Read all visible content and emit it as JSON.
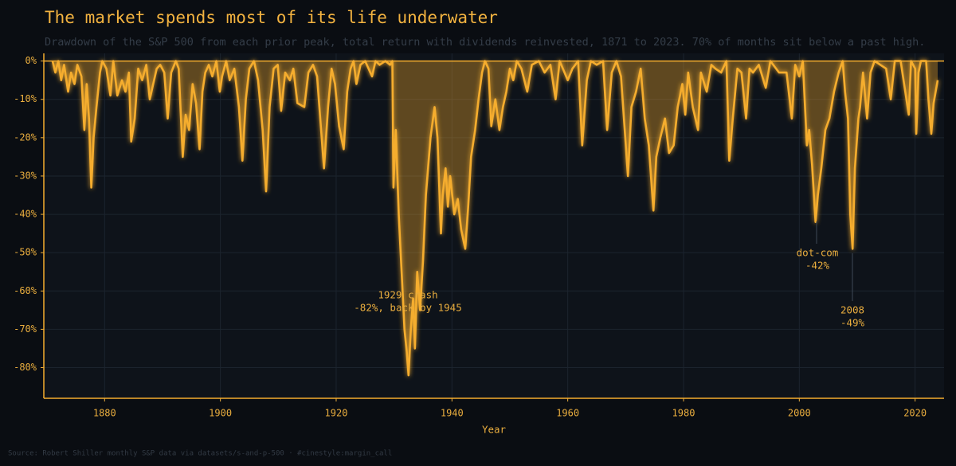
{
  "chart_data": {
    "type": "area-line",
    "title": "The market spends most of its life underwater",
    "subtitle": "Drawdown of the S&P 500 from each prior peak, total return with dividends reinvested, 1871 to 2023. 70% of months sit below a past high.",
    "x_label": "Year",
    "source": "Source: Robert Shiller monthly S&P data via datasets/s-and-p-500  ·  #cinestyle:margin_call",
    "color": "#f5ad2e",
    "grid": true,
    "xlim": [
      1869.5,
      2025
    ],
    "ylim": [
      2,
      -88
    ],
    "xticks": [
      1880,
      1900,
      1920,
      1940,
      1960,
      1980,
      2000,
      2020
    ],
    "yticks": [
      {
        "value": 0,
        "label": "0%"
      },
      {
        "value": -10,
        "label": "-10%"
      },
      {
        "value": -20,
        "label": "-20%"
      },
      {
        "value": -30,
        "label": "-30%"
      },
      {
        "value": -40,
        "label": "-40%"
      },
      {
        "value": -50,
        "label": "-50%"
      },
      {
        "value": -60,
        "label": "-60%"
      },
      {
        "value": -70,
        "label": "-70%"
      },
      {
        "value": -80,
        "label": "-80%"
      }
    ],
    "x": [
      1871.0,
      1871.5,
      1872.0,
      1872.5,
      1873.0,
      1873.7,
      1874.2,
      1874.8,
      1875.3,
      1876.0,
      1876.5,
      1876.9,
      1877.3,
      1877.7,
      1878.1,
      1878.6,
      1879.2,
      1879.6,
      1880.3,
      1881.0,
      1881.5,
      1882.2,
      1883.0,
      1883.6,
      1884.2,
      1884.6,
      1885.2,
      1885.8,
      1886.5,
      1887.2,
      1887.8,
      1888.4,
      1889.0,
      1889.6,
      1890.3,
      1890.9,
      1891.5,
      1892.3,
      1892.8,
      1893.5,
      1894.0,
      1894.6,
      1895.2,
      1895.8,
      1896.4,
      1896.9,
      1897.4,
      1898.0,
      1898.6,
      1899.3,
      1899.9,
      1900.3,
      1901.0,
      1901.6,
      1902.4,
      1903.2,
      1903.8,
      1904.4,
      1905.0,
      1905.8,
      1906.5,
      1907.3,
      1907.9,
      1908.5,
      1909.2,
      1909.9,
      1910.5,
      1911.2,
      1912.0,
      1912.6,
      1913.3,
      1914.5,
      1915.2,
      1916.0,
      1916.7,
      1917.9,
      1918.6,
      1919.2,
      1919.8,
      1920.5,
      1921.3,
      1921.9,
      1922.5,
      1923.0,
      1923.5,
      1924.2,
      1925.0,
      1926.2,
      1926.8,
      1927.5,
      1928.5,
      1929.3,
      1929.7,
      1929.9,
      1930.3,
      1930.8,
      1931.3,
      1931.8,
      1932.2,
      1932.5,
      1932.9,
      1933.3,
      1933.6,
      1934.0,
      1934.5,
      1935.0,
      1935.5,
      1936.3,
      1937.0,
      1937.5,
      1938.1,
      1938.4,
      1938.9,
      1939.3,
      1939.7,
      1940.4,
      1941.0,
      1941.6,
      1942.3,
      1942.8,
      1943.3,
      1944.0,
      1944.6,
      1945.2,
      1945.7,
      1946.3,
      1946.8,
      1947.5,
      1948.2,
      1948.8,
      1949.4,
      1950.0,
      1950.6,
      1951.2,
      1952.0,
      1953.0,
      1953.8,
      1955.0,
      1956.0,
      1957.0,
      1957.9,
      1958.6,
      1960.0,
      1960.8,
      1961.8,
      1962.5,
      1963.3,
      1964.0,
      1965.0,
      1966.1,
      1966.8,
      1967.6,
      1968.4,
      1969.2,
      1970.4,
      1971.0,
      1971.8,
      1972.6,
      1973.3,
      1974.0,
      1974.8,
      1975.3,
      1976.0,
      1976.8,
      1977.5,
      1978.3,
      1979.0,
      1979.8,
      1980.3,
      1980.8,
      1981.6,
      1982.5,
      1983.0,
      1984.0,
      1984.8,
      1985.5,
      1986.5,
      1987.4,
      1987.9,
      1988.5,
      1989.3,
      1990.0,
      1990.8,
      1991.4,
      1992.0,
      1993.0,
      1994.2,
      1995.0,
      1996.5,
      1997.8,
      1998.7,
      1999.3,
      2000.0,
      2000.6,
      2001.3,
      2001.7,
      2002.2,
      2002.8,
      2003.2,
      2003.8,
      2004.5,
      2005.2,
      2006.0,
      2006.8,
      2007.5,
      2007.9,
      2008.4,
      2008.8,
      2009.2,
      2009.6,
      2010.2,
      2010.5,
      2011.0,
      2011.7,
      2012.3,
      2013.0,
      2014.0,
      2015.0,
      2015.8,
      2016.5,
      2017.5,
      2018.2,
      2018.9,
      2019.3,
      2020.0,
      2020.2,
      2020.6,
      2021.0,
      2021.9,
      2022.3,
      2022.8,
      2023.2,
      2023.9
    ],
    "values": [
      0,
      -3,
      0,
      -5,
      -1,
      -8,
      -3,
      -6,
      -1,
      -4,
      -18,
      -6,
      -15,
      -33,
      -20,
      -12,
      -3,
      0,
      -2,
      -9,
      0,
      -9,
      -5,
      -8,
      -3,
      -21,
      -15,
      -2,
      -5,
      -1,
      -10,
      -6,
      -2,
      -1,
      -3,
      -15,
      -3,
      0,
      -2,
      -25,
      -14,
      -18,
      -6,
      -11,
      -23,
      -8,
      -3,
      -1,
      -4,
      0,
      -8,
      -4,
      0,
      -5,
      -2,
      -12,
      -26,
      -10,
      -2,
      0,
      -5,
      -18,
      -34,
      -12,
      -2,
      -1,
      -13,
      -3,
      -5,
      -2,
      -11,
      -12,
      -3,
      -1,
      -4,
      -28,
      -12,
      -2,
      -6,
      -17,
      -23,
      -8,
      -2,
      0,
      -6,
      -1,
      0,
      -4,
      0,
      -1,
      0,
      -1,
      0,
      -33,
      -18,
      -40,
      -55,
      -70,
      -76,
      -82,
      -70,
      -62,
      -75,
      -55,
      -65,
      -52,
      -35,
      -20,
      -12,
      -20,
      -45,
      -35,
      -28,
      -38,
      -30,
      -40,
      -36,
      -44,
      -49,
      -38,
      -25,
      -18,
      -10,
      -3,
      0,
      -2,
      -17,
      -10,
      -18,
      -12,
      -8,
      -2,
      -5,
      0,
      -2,
      -8,
      -1,
      0,
      -3,
      -1,
      -10,
      0,
      -5,
      -2,
      0,
      -22,
      -5,
      0,
      -1,
      0,
      -18,
      -3,
      0,
      -4,
      -30,
      -12,
      -8,
      -2,
      -15,
      -22,
      -39,
      -25,
      -20,
      -15,
      -24,
      -22,
      -12,
      -6,
      -14,
      -3,
      -12,
      -18,
      -3,
      -8,
      -1,
      -2,
      -3,
      0,
      -26,
      -15,
      -2,
      -3,
      -15,
      -2,
      -3,
      -1,
      -7,
      0,
      -3,
      -3,
      -15,
      -1,
      -4,
      0,
      -22,
      -18,
      -27,
      -42,
      -35,
      -28,
      -18,
      -15,
      -8,
      -3,
      0,
      -8,
      -15,
      -40,
      -49,
      -28,
      -15,
      -12,
      -3,
      -15,
      -3,
      0,
      -1,
      -2,
      -10,
      0,
      0,
      -7,
      -14,
      0,
      -2,
      -19,
      -3,
      0,
      0,
      -10,
      -19,
      -11,
      -5
    ],
    "annotations": [
      {
        "lines": [
          "1929 crash",
          "-82%, back by 1945"
        ]
      },
      {
        "lines": [
          "dot-com",
          "-42%"
        ]
      },
      {
        "lines": [
          "2008",
          "-49%"
        ]
      }
    ]
  }
}
